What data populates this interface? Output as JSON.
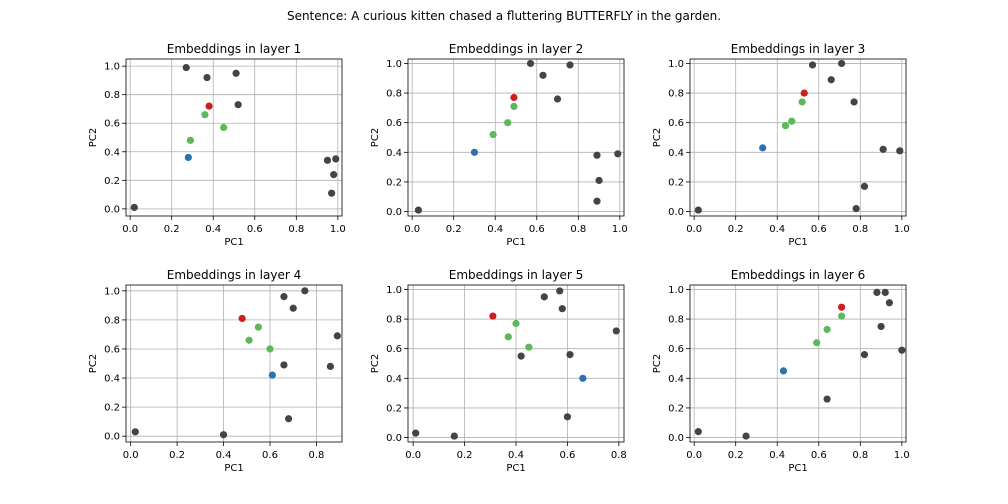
{
  "suptitle": "Sentence: A curious kitten chased a fluttering BUTTERFLY in the garden.",
  "colors": {
    "other": "#444444",
    "context": "#5cb85c",
    "target": "#cc1f1f",
    "subject": "#2b72b3",
    "grid": "#b0b0b0"
  },
  "chart_data": [
    {
      "type": "scatter",
      "title": "Embeddings in layer 1",
      "xlabel": "PC1",
      "ylabel": "PC2",
      "xlim": [
        -0.02,
        1.02
      ],
      "ylim": [
        -0.05,
        1.05
      ],
      "xticks": [
        "0.0",
        "0.2",
        "0.4",
        "0.6",
        "0.8",
        "1.0"
      ],
      "yticks": [
        "0.0",
        "0.2",
        "0.4",
        "0.6",
        "0.8",
        "1.0"
      ],
      "grid": true,
      "series": [
        {
          "role": "other",
          "x": [
            0.02,
            0.27,
            0.37,
            0.51,
            0.52,
            0.95,
            0.99,
            0.98,
            0.97
          ],
          "y": [
            0.01,
            0.99,
            0.92,
            0.95,
            0.73,
            0.34,
            0.35,
            0.24,
            0.11
          ]
        },
        {
          "role": "context",
          "x": [
            0.29,
            0.36,
            0.45
          ],
          "y": [
            0.48,
            0.66,
            0.57
          ]
        },
        {
          "role": "target",
          "x": [
            0.38
          ],
          "y": [
            0.72
          ]
        },
        {
          "role": "subject",
          "x": [
            0.28
          ],
          "y": [
            0.36
          ]
        }
      ]
    },
    {
      "type": "scatter",
      "title": "Embeddings in layer 2",
      "xlabel": "PC1",
      "ylabel": "PC2",
      "xlim": [
        -0.02,
        1.02
      ],
      "ylim": [
        -0.03,
        1.03
      ],
      "xticks": [
        "0.0",
        "0.2",
        "0.4",
        "0.6",
        "0.8",
        "1.0"
      ],
      "yticks": [
        "0.0",
        "0.2",
        "0.4",
        "0.6",
        "0.8",
        "1.0"
      ],
      "grid": true,
      "series": [
        {
          "role": "other",
          "x": [
            0.03,
            0.57,
            0.63,
            0.7,
            0.76,
            0.89,
            0.9,
            0.89,
            0.99
          ],
          "y": [
            0.01,
            1.0,
            0.92,
            0.76,
            0.99,
            0.38,
            0.21,
            0.07,
            0.39
          ]
        },
        {
          "role": "context",
          "x": [
            0.39,
            0.46,
            0.49
          ],
          "y": [
            0.52,
            0.6,
            0.71
          ]
        },
        {
          "role": "target",
          "x": [
            0.49
          ],
          "y": [
            0.77
          ]
        },
        {
          "role": "subject",
          "x": [
            0.3
          ],
          "y": [
            0.4
          ]
        }
      ]
    },
    {
      "type": "scatter",
      "title": "Embeddings in layer 3",
      "xlabel": "PC1",
      "ylabel": "PC2",
      "xlim": [
        -0.02,
        1.02
      ],
      "ylim": [
        -0.03,
        1.03
      ],
      "xticks": [
        "0.0",
        "0.2",
        "0.4",
        "0.6",
        "0.8",
        "1.0"
      ],
      "yticks": [
        "0.0",
        "0.2",
        "0.4",
        "0.6",
        "0.8",
        "1.0"
      ],
      "grid": true,
      "series": [
        {
          "role": "other",
          "x": [
            0.02,
            0.57,
            0.66,
            0.71,
            0.77,
            0.78,
            0.82,
            0.91,
            0.99
          ],
          "y": [
            0.01,
            0.99,
            0.89,
            1.0,
            0.74,
            0.02,
            0.17,
            0.42,
            0.41
          ]
        },
        {
          "role": "context",
          "x": [
            0.44,
            0.47,
            0.52
          ],
          "y": [
            0.58,
            0.61,
            0.74
          ]
        },
        {
          "role": "target",
          "x": [
            0.53
          ],
          "y": [
            0.8
          ]
        },
        {
          "role": "subject",
          "x": [
            0.33
          ],
          "y": [
            0.43
          ]
        }
      ]
    },
    {
      "type": "scatter",
      "title": "Embeddings in layer 4",
      "xlabel": "PC1",
      "ylabel": "PC2",
      "xlim": [
        -0.02,
        0.91
      ],
      "ylim": [
        -0.04,
        1.04
      ],
      "xticks": [
        "0.0",
        "0.2",
        "0.4",
        "0.6",
        "0.8"
      ],
      "yticks": [
        "0.0",
        "0.2",
        "0.4",
        "0.6",
        "0.8",
        "1.0"
      ],
      "grid": true,
      "series": [
        {
          "role": "other",
          "x": [
            0.02,
            0.4,
            0.66,
            0.66,
            0.68,
            0.7,
            0.75,
            0.86,
            0.89
          ],
          "y": [
            0.03,
            0.01,
            0.96,
            0.49,
            0.12,
            0.88,
            1.0,
            0.48,
            0.69
          ]
        },
        {
          "role": "context",
          "x": [
            0.51,
            0.55,
            0.6
          ],
          "y": [
            0.66,
            0.75,
            0.6
          ]
        },
        {
          "role": "target",
          "x": [
            0.48
          ],
          "y": [
            0.81
          ]
        },
        {
          "role": "subject",
          "x": [
            0.61
          ],
          "y": [
            0.42
          ]
        }
      ]
    },
    {
      "type": "scatter",
      "title": "Embeddings in layer 5",
      "xlabel": "PC1",
      "ylabel": "PC2",
      "xlim": [
        -0.02,
        0.82
      ],
      "ylim": [
        -0.03,
        1.03
      ],
      "xticks": [
        "0.0",
        "0.2",
        "0.4",
        "0.6",
        "0.8"
      ],
      "yticks": [
        "0.0",
        "0.2",
        "0.4",
        "0.6",
        "0.8",
        "1.0"
      ],
      "grid": true,
      "series": [
        {
          "role": "other",
          "x": [
            0.01,
            0.16,
            0.42,
            0.51,
            0.57,
            0.58,
            0.6,
            0.61,
            0.79
          ],
          "y": [
            0.03,
            0.01,
            0.55,
            0.95,
            0.99,
            0.87,
            0.14,
            0.56,
            0.72
          ]
        },
        {
          "role": "context",
          "x": [
            0.37,
            0.4,
            0.45
          ],
          "y": [
            0.68,
            0.77,
            0.61
          ]
        },
        {
          "role": "target",
          "x": [
            0.31
          ],
          "y": [
            0.82
          ]
        },
        {
          "role": "subject",
          "x": [
            0.66
          ],
          "y": [
            0.4
          ]
        }
      ]
    },
    {
      "type": "scatter",
      "title": "Embeddings in layer 6",
      "xlabel": "PC1",
      "ylabel": "PC2",
      "xlim": [
        -0.02,
        1.02
      ],
      "ylim": [
        -0.03,
        1.03
      ],
      "xticks": [
        "0.0",
        "0.2",
        "0.4",
        "0.6",
        "0.8",
        "1.0"
      ],
      "yticks": [
        "0.0",
        "0.2",
        "0.4",
        "0.6",
        "0.8",
        "1.0"
      ],
      "grid": true,
      "series": [
        {
          "role": "other",
          "x": [
            0.02,
            0.25,
            0.64,
            0.82,
            0.88,
            0.9,
            0.92,
            0.94,
            1.0
          ],
          "y": [
            0.04,
            0.01,
            0.26,
            0.56,
            0.98,
            0.75,
            0.98,
            0.91,
            0.59
          ]
        },
        {
          "role": "context",
          "x": [
            0.59,
            0.64,
            0.71
          ],
          "y": [
            0.64,
            0.73,
            0.82
          ]
        },
        {
          "role": "target",
          "x": [
            0.71
          ],
          "y": [
            0.88
          ]
        },
        {
          "role": "subject",
          "x": [
            0.43
          ],
          "y": [
            0.45
          ]
        }
      ]
    }
  ]
}
